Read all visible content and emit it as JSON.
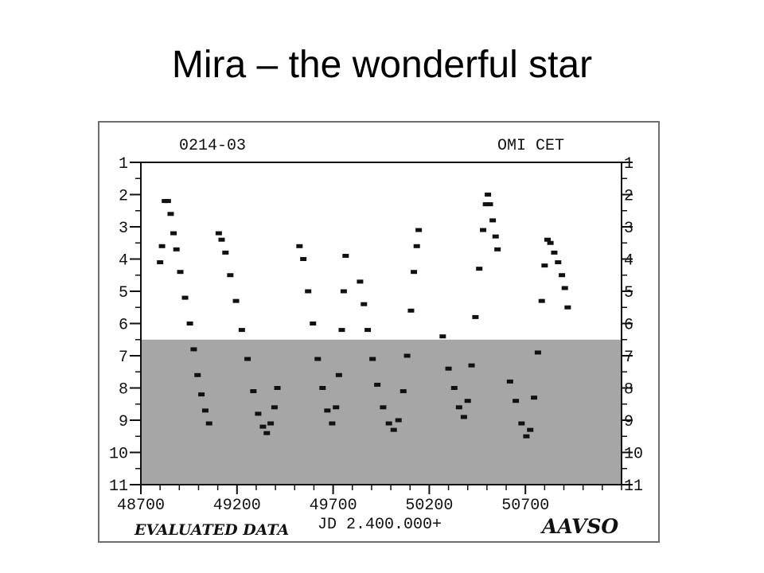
{
  "slide": {
    "title": "Mira – the wonderful star"
  },
  "chart_data": {
    "type": "scatter",
    "designation": "0214-03",
    "star_name": "OMI CET",
    "xlabel": "JD 2.400.000+",
    "footer_left": "EVALUATED DATA",
    "footer_right": "AAVSO",
    "xlim": [
      48700,
      51200
    ],
    "ylim": [
      11,
      1
    ],
    "x_ticks": [
      48700,
      49200,
      49700,
      50200,
      50700
    ],
    "y_ticks": [
      1,
      2,
      3,
      4,
      5,
      6,
      7,
      8,
      9,
      10,
      11
    ],
    "shaded_region_below_magnitude": 6.5,
    "shade_color": "#a6a6a6",
    "point_color": "#111111",
    "series": [
      {
        "values": [
          [
            48800,
            4.1
          ],
          [
            48810,
            3.6
          ],
          [
            48825,
            2.2
          ],
          [
            48840,
            2.2
          ],
          [
            48855,
            2.6
          ],
          [
            48870,
            3.2
          ],
          [
            48885,
            3.7
          ],
          [
            48905,
            4.4
          ],
          [
            48930,
            5.2
          ],
          [
            48955,
            6.0
          ],
          [
            48975,
            6.8
          ],
          [
            48995,
            7.6
          ],
          [
            49015,
            8.2
          ],
          [
            49035,
            8.7
          ],
          [
            49055,
            9.1
          ],
          [
            49105,
            3.2
          ],
          [
            49120,
            3.4
          ],
          [
            49140,
            3.8
          ],
          [
            49165,
            4.5
          ],
          [
            49195,
            5.3
          ],
          [
            49225,
            6.2
          ],
          [
            49255,
            7.1
          ],
          [
            49285,
            8.1
          ],
          [
            49310,
            8.8
          ],
          [
            49335,
            9.2
          ],
          [
            49355,
            9.4
          ],
          [
            49375,
            9.1
          ],
          [
            49395,
            8.6
          ],
          [
            49410,
            8.0
          ],
          [
            49525,
            3.6
          ],
          [
            49545,
            4.0
          ],
          [
            49570,
            5.0
          ],
          [
            49595,
            6.0
          ],
          [
            49620,
            7.1
          ],
          [
            49645,
            8.0
          ],
          [
            49670,
            8.7
          ],
          [
            49695,
            9.1
          ],
          [
            49715,
            8.6
          ],
          [
            49730,
            7.6
          ],
          [
            49745,
            6.2
          ],
          [
            49755,
            5.0
          ],
          [
            49765,
            3.9
          ],
          [
            49840,
            4.7
          ],
          [
            49860,
            5.4
          ],
          [
            49880,
            6.2
          ],
          [
            49905,
            7.1
          ],
          [
            49930,
            7.9
          ],
          [
            49960,
            8.6
          ],
          [
            49990,
            9.1
          ],
          [
            50015,
            9.3
          ],
          [
            50040,
            9.0
          ],
          [
            50065,
            8.1
          ],
          [
            50085,
            7.0
          ],
          [
            50105,
            5.6
          ],
          [
            50120,
            4.4
          ],
          [
            50135,
            3.6
          ],
          [
            50145,
            3.1
          ],
          [
            50270,
            6.4
          ],
          [
            50300,
            7.4
          ],
          [
            50330,
            8.0
          ],
          [
            50355,
            8.6
          ],
          [
            50380,
            8.9
          ],
          [
            50400,
            8.4
          ],
          [
            50420,
            7.3
          ],
          [
            50440,
            5.8
          ],
          [
            50460,
            4.3
          ],
          [
            50480,
            3.1
          ],
          [
            50495,
            2.3
          ],
          [
            50505,
            2.0
          ],
          [
            50515,
            2.3
          ],
          [
            50530,
            2.8
          ],
          [
            50545,
            3.3
          ],
          [
            50555,
            3.7
          ],
          [
            50620,
            7.8
          ],
          [
            50650,
            8.4
          ],
          [
            50680,
            9.1
          ],
          [
            50705,
            9.5
          ],
          [
            50725,
            9.3
          ],
          [
            50745,
            8.3
          ],
          [
            50765,
            6.9
          ],
          [
            50785,
            5.3
          ],
          [
            50800,
            4.2
          ],
          [
            50815,
            3.4
          ],
          [
            50830,
            3.5
          ],
          [
            50850,
            3.8
          ],
          [
            50870,
            4.1
          ],
          [
            50890,
            4.5
          ],
          [
            50905,
            4.9
          ],
          [
            50920,
            5.5
          ]
        ]
      }
    ]
  }
}
